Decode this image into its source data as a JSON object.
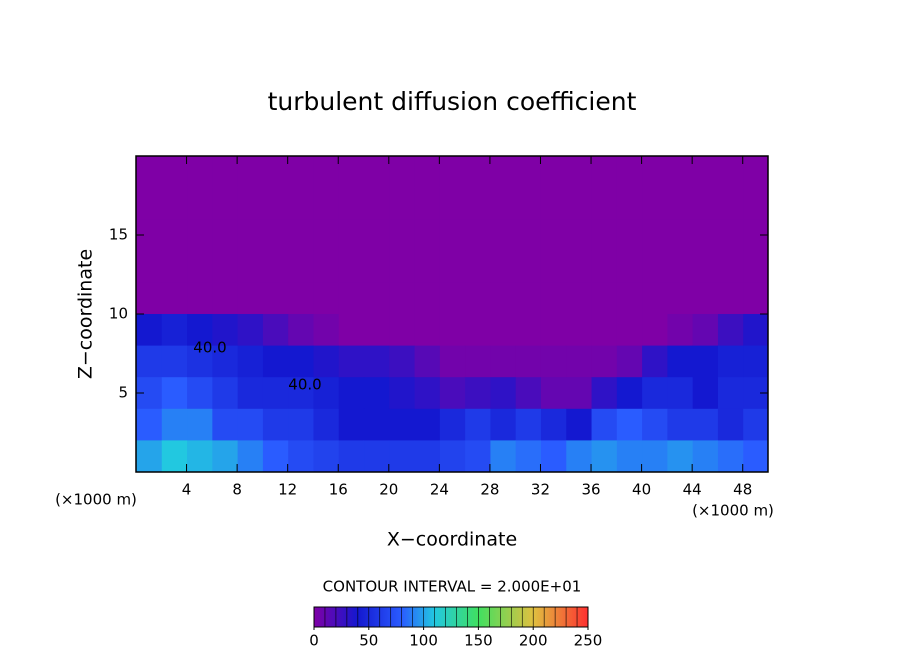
{
  "chart_data": {
    "type": "contour",
    "title": "turbulent diffusion coefficient",
    "x_label": "X−coordinate",
    "y_label": "Z−coordinate",
    "x_unit": "(×1000 m)",
    "note": "CONTOUR INTERVAL = 2.000E+01",
    "contour_labels": [
      "40.0",
      "40.0"
    ],
    "xlim": [
      0,
      50
    ],
    "ylim": [
      0,
      20
    ],
    "xticks": [
      4,
      8,
      12,
      16,
      20,
      24,
      28,
      32,
      36,
      40,
      44,
      48
    ],
    "yticks": [
      5,
      10,
      15
    ],
    "x": [
      1,
      3,
      5,
      7,
      9,
      11,
      13,
      15,
      17,
      19,
      21,
      23,
      25,
      27,
      29,
      31,
      33,
      35,
      37,
      39,
      41,
      43,
      45,
      47,
      49
    ],
    "y": [
      1,
      3,
      5,
      7,
      9,
      11,
      13,
      15,
      17,
      19
    ],
    "z": [
      [
        100,
        110,
        105,
        100,
        90,
        80,
        70,
        65,
        60,
        60,
        60,
        60,
        65,
        70,
        90,
        85,
        80,
        90,
        95,
        90,
        90,
        95,
        90,
        85,
        80
      ],
      [
        80,
        90,
        90,
        70,
        70,
        60,
        60,
        50,
        40,
        40,
        40,
        40,
        50,
        60,
        50,
        60,
        50,
        40,
        70,
        80,
        70,
        60,
        60,
        50,
        60
      ],
      [
        70,
        80,
        70,
        60,
        50,
        50,
        50,
        45,
        40,
        40,
        35,
        30,
        20,
        25,
        30,
        20,
        10,
        10,
        30,
        40,
        50,
        50,
        40,
        50,
        50
      ],
      [
        60,
        60,
        55,
        50,
        45,
        40,
        40,
        35,
        30,
        30,
        25,
        15,
        5,
        5,
        5,
        5,
        5,
        5,
        5,
        10,
        30,
        40,
        40,
        45,
        45
      ],
      [
        40,
        45,
        40,
        35,
        30,
        20,
        10,
        5,
        0,
        0,
        0,
        0,
        0,
        0,
        0,
        0,
        0,
        0,
        0,
        0,
        0,
        5,
        10,
        25,
        35
      ],
      [
        0,
        0,
        0,
        0,
        0,
        0,
        0,
        0,
        0,
        0,
        0,
        0,
        0,
        0,
        0,
        0,
        0,
        0,
        0,
        0,
        0,
        0,
        0,
        0,
        0
      ],
      [
        0,
        0,
        0,
        0,
        0,
        0,
        0,
        0,
        0,
        0,
        0,
        0,
        0,
        0,
        0,
        0,
        0,
        0,
        0,
        0,
        0,
        0,
        0,
        0,
        0
      ],
      [
        0,
        0,
        0,
        0,
        0,
        0,
        0,
        0,
        0,
        0,
        0,
        0,
        0,
        0,
        0,
        0,
        0,
        0,
        0,
        0,
        0,
        0,
        0,
        0,
        0
      ],
      [
        0,
        0,
        0,
        0,
        0,
        0,
        0,
        0,
        0,
        0,
        0,
        0,
        0,
        0,
        0,
        0,
        0,
        0,
        0,
        0,
        0,
        0,
        0,
        0,
        0
      ],
      [
        0,
        0,
        0,
        0,
        0,
        0,
        0,
        0,
        0,
        0,
        0,
        0,
        0,
        0,
        0,
        0,
        0,
        0,
        0,
        0,
        0,
        0,
        0,
        0,
        0
      ]
    ],
    "cell_size": [
      2,
      2
    ],
    "colorscale": [
      [
        0,
        "#7f00a6"
      ],
      [
        40,
        "#1418d0"
      ],
      [
        80,
        "#2a5cff"
      ],
      [
        110,
        "#22c8e0"
      ],
      [
        150,
        "#40e060"
      ],
      [
        200,
        "#e0c040"
      ],
      [
        250,
        "#ff3030"
      ]
    ],
    "colorbar_lim": [
      0,
      250
    ],
    "colorbar_ticks": [
      0,
      50,
      100,
      150,
      200,
      250
    ]
  }
}
